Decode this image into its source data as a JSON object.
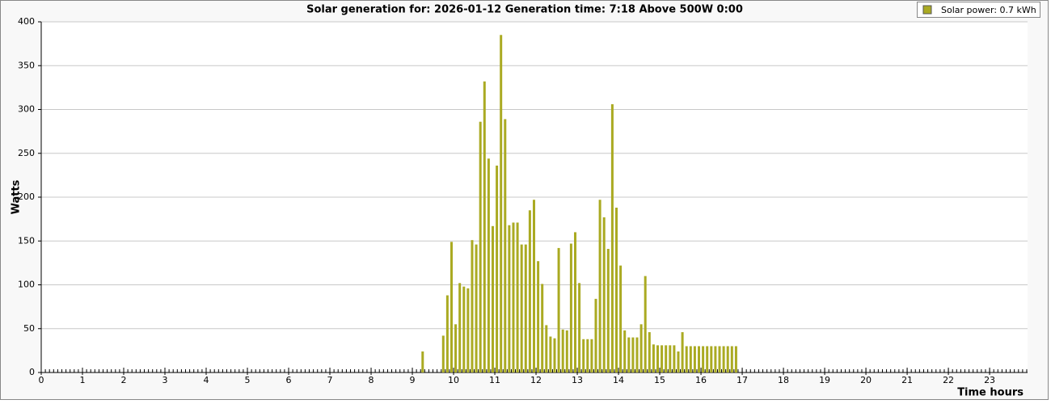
{
  "chart_data": {
    "type": "bar",
    "title": "Solar generation for: 2026-01-12 Generation time: 7:18 Above 500W 0:00",
    "xlabel": "Time hours",
    "ylabel": "Watts",
    "series": [
      {
        "name": "Solar power: 0.7 kWh",
        "color": "#aaaa22",
        "x": [
          9.25,
          9.75,
          9.85,
          9.95,
          10.05,
          10.15,
          10.25,
          10.35,
          10.45,
          10.55,
          10.65,
          10.75,
          10.85,
          10.95,
          11.05,
          11.15,
          11.25,
          11.35,
          11.45,
          11.55,
          11.65,
          11.75,
          11.85,
          11.95,
          12.05,
          12.15,
          12.25,
          12.35,
          12.45,
          12.55,
          12.65,
          12.75,
          12.85,
          12.95,
          13.05,
          13.15,
          13.25,
          13.35,
          13.45,
          13.55,
          13.65,
          13.75,
          13.85,
          13.95,
          14.05,
          14.15,
          14.25,
          14.35,
          14.45,
          14.55,
          14.65,
          14.75,
          14.85,
          14.95,
          15.05,
          15.15,
          15.25,
          15.35,
          15.45,
          15.55,
          15.65,
          15.75,
          15.85,
          15.95,
          16.05,
          16.15,
          16.25,
          16.35,
          16.45,
          16.55,
          16.65,
          16.75,
          16.85
        ],
        "values": [
          24,
          42,
          88,
          149,
          55,
          102,
          98,
          96,
          151,
          146,
          286,
          332,
          244,
          167,
          236,
          385,
          289,
          168,
          171,
          171,
          146,
          146,
          185,
          197,
          127,
          101,
          54,
          41,
          39,
          142,
          49,
          48,
          147,
          160,
          102,
          38,
          38,
          38,
          84,
          197,
          177,
          141,
          306,
          188,
          122,
          48,
          40,
          40,
          40,
          55,
          110,
          46,
          32,
          31,
          31,
          31,
          31,
          31,
          24,
          46,
          30,
          30,
          30,
          30,
          30,
          30,
          30,
          30,
          30,
          30,
          30,
          30,
          30
        ]
      }
    ],
    "xlim": [
      0,
      23.92
    ],
    "xticks": [
      0,
      1,
      2,
      3,
      4,
      5,
      6,
      7,
      8,
      9,
      10,
      11,
      12,
      13,
      14,
      15,
      16,
      17,
      18,
      19,
      20,
      21,
      22,
      23
    ],
    "xminor_step": 0.1,
    "ylim": [
      0,
      400
    ],
    "yticks": [
      0,
      50,
      100,
      150,
      200,
      250,
      300,
      350,
      400
    ],
    "grid": true,
    "legend": "top-right"
  }
}
